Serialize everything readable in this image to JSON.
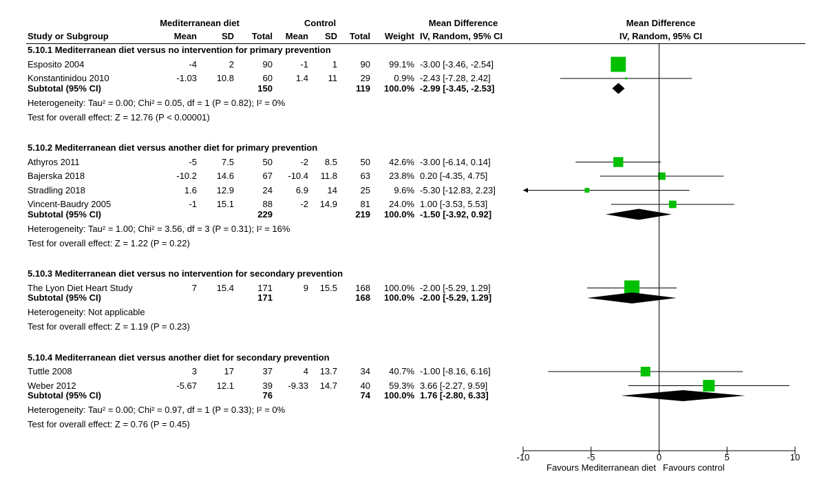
{
  "header": {
    "group1": "Mediterranean diet",
    "group2": "Control",
    "effect_title": "Mean Difference",
    "columns": {
      "study": "Study or Subgroup",
      "mean1": "Mean",
      "sd1": "SD",
      "total1": "Total",
      "mean2": "Mean",
      "sd2": "SD",
      "total2": "Total",
      "weight": "Weight",
      "method": "IV, Random, 95% CI"
    },
    "plot_title": "Mean Difference",
    "plot_method": "IV, Random, 95% CI"
  },
  "subgroups": [
    {
      "title": "5.10.1 Mediterranean diet versus no intervention for primary prevention",
      "studies": [
        {
          "name": "Esposito 2004",
          "mean1": "-4",
          "sd1": "2",
          "total1": "90",
          "mean2": "-1",
          "sd2": "1",
          "total2": "90",
          "weight": "99.1%",
          "ci": "-3.00 [-3.46, -2.54]"
        },
        {
          "name": "Konstantinidou 2010",
          "mean1": "-1.03",
          "sd1": "10.8",
          "total1": "60",
          "mean2": "1.4",
          "sd2": "11",
          "total2": "29",
          "weight": "0.9%",
          "ci": "-2.43 [-7.28, 2.42]"
        }
      ],
      "subtotal": {
        "label": "Subtotal (95% CI)",
        "total1": "150",
        "total2": "119",
        "weight": "100.0%",
        "ci": "-2.99 [-3.45, -2.53]"
      },
      "heterogeneity": "Heterogeneity: Tau² = 0.00; Chi² = 0.05, df = 1 (P = 0.82); I² = 0%",
      "overall": "Test for overall effect: Z = 12.76 (P < 0.00001)"
    },
    {
      "title": "5.10.2 Mediterranean diet versus another diet for primary prevention",
      "studies": [
        {
          "name": "Athyros 2011",
          "mean1": "-5",
          "sd1": "7.5",
          "total1": "50",
          "mean2": "-2",
          "sd2": "8.5",
          "total2": "50",
          "weight": "42.6%",
          "ci": "-3.00 [-6.14, 0.14]"
        },
        {
          "name": "Bajerska 2018",
          "mean1": "-10.2",
          "sd1": "14.6",
          "total1": "67",
          "mean2": "-10.4",
          "sd2": "11.8",
          "total2": "63",
          "weight": "23.8%",
          "ci": "0.20 [-4.35, 4.75]"
        },
        {
          "name": "Stradling 2018",
          "mean1": "1.6",
          "sd1": "12.9",
          "total1": "24",
          "mean2": "6.9",
          "sd2": "14",
          "total2": "25",
          "weight": "9.6%",
          "ci": "-5.30 [-12.83, 2.23]"
        },
        {
          "name": "Vincent-Baudry 2005",
          "mean1": "-1",
          "sd1": "15.1",
          "total1": "88",
          "mean2": "-2",
          "sd2": "14.9",
          "total2": "81",
          "weight": "24.0%",
          "ci": "1.00 [-3.53, 5.53]"
        }
      ],
      "subtotal": {
        "label": "Subtotal (95% CI)",
        "total1": "229",
        "total2": "219",
        "weight": "100.0%",
        "ci": "-1.50 [-3.92, 0.92]"
      },
      "heterogeneity": "Heterogeneity: Tau² = 1.00; Chi² = 3.56, df = 3 (P = 0.31); I² = 16%",
      "overall": "Test for overall effect: Z = 1.22 (P = 0.22)"
    },
    {
      "title": "5.10.3 Mediterranean diet versus no intervention for secondary prevention",
      "studies": [
        {
          "name": "The Lyon Diet Heart Study",
          "mean1": "7",
          "sd1": "15.4",
          "total1": "171",
          "mean2": "9",
          "sd2": "15.5",
          "total2": "168",
          "weight": "100.0%",
          "ci": "-2.00 [-5.29, 1.29]"
        }
      ],
      "subtotal": {
        "label": "Subtotal (95% CI)",
        "total1": "171",
        "total2": "168",
        "weight": "100.0%",
        "ci": "-2.00 [-5.29, 1.29]"
      },
      "heterogeneity": "Heterogeneity: Not applicable",
      "overall": "Test for overall effect: Z = 1.19 (P = 0.23)"
    },
    {
      "title": "5.10.4 Mediterranean diet versus another diet for secondary prevention",
      "studies": [
        {
          "name": "Tuttle 2008",
          "mean1": "3",
          "sd1": "17",
          "total1": "37",
          "mean2": "4",
          "sd2": "13.7",
          "total2": "34",
          "weight": "40.7%",
          "ci": "-1.00 [-8.16, 6.16]"
        },
        {
          "name": "Weber 2012",
          "mean1": "-5.67",
          "sd1": "12.1",
          "total1": "39",
          "mean2": "-9.33",
          "sd2": "14.7",
          "total2": "40",
          "weight": "59.3%",
          "ci": "3.66 [-2.27, 9.59]"
        }
      ],
      "subtotal": {
        "label": "Subtotal (95% CI)",
        "total1": "76",
        "total2": "74",
        "weight": "100.0%",
        "ci": "1.76 [-2.80, 6.33]"
      },
      "heterogeneity": "Heterogeneity: Tau² = 0.00; Chi² = 0.97, df = 1 (P = 0.33); I² = 0%",
      "overall": "Test for overall effect: Z = 0.76 (P = 0.45)"
    }
  ],
  "chart_data": {
    "type": "forest",
    "title": "Mean Difference",
    "subtitle": "IV, Random, 95% CI",
    "xlim": [
      -10,
      10
    ],
    "xticks": [
      -10,
      -5,
      0,
      5,
      10
    ],
    "xtick_labels": [
      "-10",
      "-5",
      "0",
      "5",
      "10"
    ],
    "left_label": "Favours Mediterranean diet",
    "right_label": "Favours control",
    "colors": {
      "study": "#00c000",
      "summary": "#000000",
      "axis": "#000000"
    },
    "series": [
      {
        "name": "5.10.1",
        "studies": [
          {
            "label": "Esposito 2004",
            "md": -3.0,
            "lo": -3.46,
            "hi": -2.54,
            "weight": 99.1
          },
          {
            "label": "Konstantinidou 2010",
            "md": -2.43,
            "lo": -7.28,
            "hi": 2.42,
            "weight": 0.9
          }
        ],
        "pooled": {
          "md": -2.99,
          "lo": -3.45,
          "hi": -2.53
        }
      },
      {
        "name": "5.10.2",
        "studies": [
          {
            "label": "Athyros 2011",
            "md": -3.0,
            "lo": -6.14,
            "hi": 0.14,
            "weight": 42.6
          },
          {
            "label": "Bajerska 2018",
            "md": 0.2,
            "lo": -4.35,
            "hi": 4.75,
            "weight": 23.8
          },
          {
            "label": "Stradling 2018",
            "md": -5.3,
            "lo": -12.83,
            "hi": 2.23,
            "weight": 9.6
          },
          {
            "label": "Vincent-Baudry 2005",
            "md": 1.0,
            "lo": -3.53,
            "hi": 5.53,
            "weight": 24.0
          }
        ],
        "pooled": {
          "md": -1.5,
          "lo": -3.92,
          "hi": 0.92
        }
      },
      {
        "name": "5.10.3",
        "studies": [
          {
            "label": "The Lyon Diet Heart Study",
            "md": -2.0,
            "lo": -5.29,
            "hi": 1.29,
            "weight": 100.0
          }
        ],
        "pooled": {
          "md": -2.0,
          "lo": -5.29,
          "hi": 1.29
        }
      },
      {
        "name": "5.10.4",
        "studies": [
          {
            "label": "Tuttle 2008",
            "md": -1.0,
            "lo": -8.16,
            "hi": 6.16,
            "weight": 40.7
          },
          {
            "label": "Weber 2012",
            "md": 3.66,
            "lo": -2.27,
            "hi": 9.59,
            "weight": 59.3
          }
        ],
        "pooled": {
          "md": 1.76,
          "lo": -2.8,
          "hi": 6.33
        }
      }
    ]
  }
}
